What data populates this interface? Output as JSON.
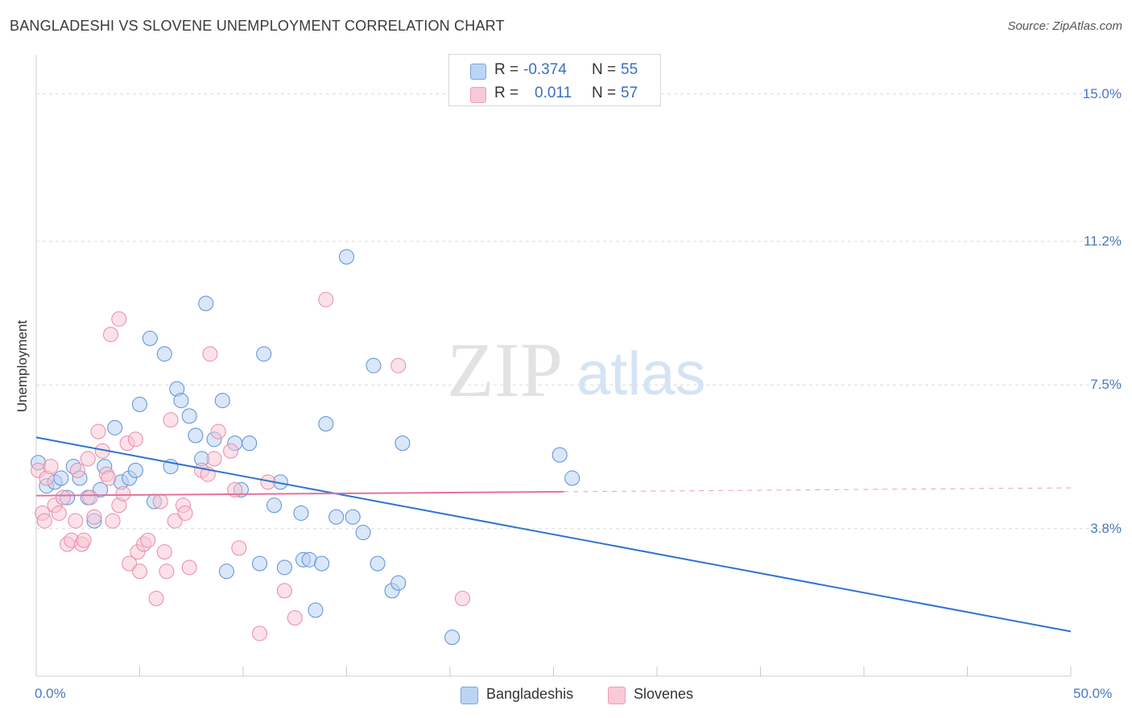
{
  "title": "BANGLADESHI VS SLOVENE UNEMPLOYMENT CORRELATION CHART",
  "source": "Source: ZipAtlas.com",
  "watermark": {
    "zip": "ZIP",
    "atlas": "atlas"
  },
  "stats": {
    "rows": [
      {
        "r_label": "R =",
        "r_value": "-0.374",
        "n_label": "N =",
        "n_value": "55",
        "color": "#a9c8f0"
      },
      {
        "r_label": "R =",
        "r_value": "0.011",
        "n_label": "N =",
        "n_value": "57",
        "color": "#f5b8cb"
      }
    ]
  },
  "legend": {
    "series1": "Bangladeshis",
    "series2": "Slovenes"
  },
  "chart_data": {
    "type": "scatter",
    "title": "BANGLADESHI VS SLOVENE UNEMPLOYMENT CORRELATION CHART",
    "xlabel": "",
    "ylabel": "Unemployment",
    "xlim": [
      0,
      50
    ],
    "ylim": [
      0,
      15.8
    ],
    "x_tick_labels": [
      "0.0%",
      "50.0%"
    ],
    "y_ticks": [
      3.8,
      7.5,
      11.2,
      15.0
    ],
    "y_tick_labels": [
      "3.8%",
      "7.5%",
      "11.2%",
      "15.0%"
    ],
    "grid": true,
    "colors": {
      "bangladeshi": "#5b8fd9",
      "bangladeshi_fill": "#b9d3f3",
      "bangladeshi_line": "#2f74d0",
      "slovene": "#e98aa8",
      "slovene_fill": "#f7c3d2",
      "slovene_line": "#e8709a"
    },
    "series": [
      {
        "name": "Bangladeshis",
        "points": [
          [
            0.1,
            5.5
          ],
          [
            0.5,
            4.9
          ],
          [
            0.9,
            5.0
          ],
          [
            1.2,
            5.1
          ],
          [
            1.5,
            4.6
          ],
          [
            1.8,
            5.4
          ],
          [
            2.1,
            5.1
          ],
          [
            2.5,
            4.6
          ],
          [
            2.8,
            4.0
          ],
          [
            3.1,
            4.8
          ],
          [
            3.3,
            5.4
          ],
          [
            3.8,
            6.4
          ],
          [
            4.1,
            5.0
          ],
          [
            4.5,
            5.1
          ],
          [
            4.8,
            5.3
          ],
          [
            5.0,
            7.0
          ],
          [
            5.5,
            8.7
          ],
          [
            5.7,
            4.5
          ],
          [
            6.2,
            8.3
          ],
          [
            6.5,
            5.4
          ],
          [
            6.8,
            7.4
          ],
          [
            7.0,
            7.1
          ],
          [
            7.4,
            6.7
          ],
          [
            7.7,
            6.2
          ],
          [
            8.0,
            5.6
          ],
          [
            8.2,
            9.6
          ],
          [
            8.6,
            6.1
          ],
          [
            9.0,
            7.1
          ],
          [
            9.2,
            2.7
          ],
          [
            9.6,
            6.0
          ],
          [
            9.9,
            4.8
          ],
          [
            10.3,
            6.0
          ],
          [
            10.8,
            2.9
          ],
          [
            11.0,
            8.3
          ],
          [
            11.5,
            4.4
          ],
          [
            11.8,
            5.0
          ],
          [
            12.0,
            2.8
          ],
          [
            12.8,
            4.2
          ],
          [
            12.9,
            3.0
          ],
          [
            13.2,
            3.0
          ],
          [
            13.5,
            1.7
          ],
          [
            13.8,
            2.9
          ],
          [
            14.0,
            6.5
          ],
          [
            14.5,
            4.1
          ],
          [
            15.0,
            10.8
          ],
          [
            15.3,
            4.1
          ],
          [
            15.8,
            3.7
          ],
          [
            16.3,
            8.0
          ],
          [
            16.5,
            2.9
          ],
          [
            17.2,
            2.2
          ],
          [
            17.5,
            2.4
          ],
          [
            17.7,
            6.0
          ],
          [
            20.1,
            1.0
          ],
          [
            25.3,
            5.7
          ],
          [
            25.9,
            5.1
          ]
        ]
      },
      {
        "name": "Slovenes",
        "points": [
          [
            0.1,
            5.3
          ],
          [
            0.3,
            4.2
          ],
          [
            0.4,
            4.0
          ],
          [
            0.5,
            5.1
          ],
          [
            0.7,
            5.4
          ],
          [
            0.9,
            4.4
          ],
          [
            1.1,
            4.2
          ],
          [
            1.3,
            4.6
          ],
          [
            1.5,
            3.4
          ],
          [
            1.7,
            3.5
          ],
          [
            1.9,
            4.0
          ],
          [
            2.0,
            5.3
          ],
          [
            2.2,
            3.4
          ],
          [
            2.3,
            3.5
          ],
          [
            2.5,
            5.6
          ],
          [
            2.6,
            4.6
          ],
          [
            2.8,
            4.1
          ],
          [
            3.0,
            6.3
          ],
          [
            3.2,
            5.8
          ],
          [
            3.4,
            5.2
          ],
          [
            3.5,
            5.1
          ],
          [
            3.6,
            8.8
          ],
          [
            3.7,
            4.0
          ],
          [
            4.0,
            4.4
          ],
          [
            4.0,
            9.2
          ],
          [
            4.2,
            4.7
          ],
          [
            4.4,
            6.0
          ],
          [
            4.5,
            2.9
          ],
          [
            4.8,
            6.1
          ],
          [
            4.9,
            3.2
          ],
          [
            5.0,
            2.7
          ],
          [
            5.2,
            3.4
          ],
          [
            5.4,
            3.5
          ],
          [
            5.8,
            2.0
          ],
          [
            6.0,
            4.5
          ],
          [
            6.2,
            3.2
          ],
          [
            6.3,
            2.7
          ],
          [
            6.5,
            6.6
          ],
          [
            6.7,
            4.0
          ],
          [
            7.1,
            4.4
          ],
          [
            7.2,
            4.2
          ],
          [
            7.4,
            2.8
          ],
          [
            8.0,
            5.3
          ],
          [
            8.3,
            5.2
          ],
          [
            8.4,
            8.3
          ],
          [
            8.6,
            5.6
          ],
          [
            8.8,
            6.3
          ],
          [
            9.4,
            5.8
          ],
          [
            9.6,
            4.8
          ],
          [
            9.8,
            3.3
          ],
          [
            10.8,
            1.1
          ],
          [
            11.2,
            5.0
          ],
          [
            12.0,
            2.2
          ],
          [
            12.5,
            1.5
          ],
          [
            14.0,
            9.7
          ],
          [
            17.5,
            8.0
          ],
          [
            20.6,
            2.0
          ]
        ]
      }
    ],
    "trend_lines": [
      {
        "series": "Bangladeshis",
        "x": [
          0,
          50
        ],
        "y": [
          6.15,
          1.15
        ],
        "style": "solid"
      },
      {
        "series": "Slovenes",
        "x": [
          0,
          25.5,
          50
        ],
        "y": [
          4.65,
          4.75,
          4.85
        ],
        "style": "solid-then-dashed"
      }
    ]
  }
}
